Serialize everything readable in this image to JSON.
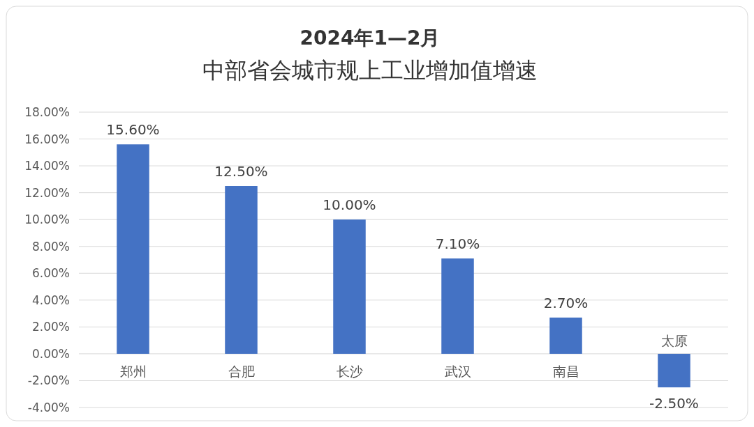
{
  "chart_data": {
    "type": "bar",
    "title": "2024年1—2月",
    "subtitle": "中部省会城市规上工业增加值增速",
    "categories": [
      "郑州",
      "合肥",
      "长沙",
      "武汉",
      "南昌",
      "太原"
    ],
    "values": [
      15.6,
      12.5,
      10.0,
      7.1,
      2.7,
      -2.5
    ],
    "value_labels": [
      "15.60%",
      "12.50%",
      "10.00%",
      "7.10%",
      "2.70%",
      "-2.50%"
    ],
    "color": "#4472c4",
    "ylim": [
      -4,
      18
    ],
    "yticks": [
      {
        "value": -4,
        "label": "-4.00%"
      },
      {
        "value": -2,
        "label": "-2.00%"
      },
      {
        "value": 0,
        "label": "0.00%"
      },
      {
        "value": 2,
        "label": "2.00%"
      },
      {
        "value": 4,
        "label": "4.00%"
      },
      {
        "value": 6,
        "label": "6.00%"
      },
      {
        "value": 8,
        "label": "8.00%"
      },
      {
        "value": 10,
        "label": "10.00%"
      },
      {
        "value": 12,
        "label": "12.00%"
      },
      {
        "value": 14,
        "label": "14.00%"
      },
      {
        "value": 16,
        "label": "16.00%"
      },
      {
        "value": 18,
        "label": "18.00%"
      }
    ],
    "grid": true
  }
}
